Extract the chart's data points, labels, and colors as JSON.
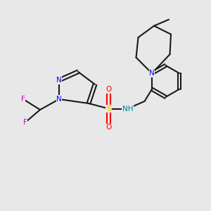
{
  "bg_color": "#e8e8e8",
  "bond_color": "#1a1a1a",
  "bond_lw": 1.5,
  "atom_colors": {
    "N": "#0000ff",
    "O": "#ff0000",
    "F": "#cc00cc",
    "S": "#cccc00",
    "NH": "#008080",
    "C": "#1a1a1a"
  },
  "font_size": 7.5
}
